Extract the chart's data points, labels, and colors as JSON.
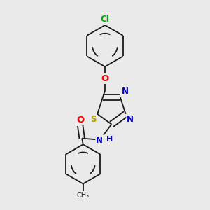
{
  "bg_color": "#eaeaea",
  "bond_color": "#1a1a1a",
  "atom_colors": {
    "Cl": "#00aa00",
    "O": "#ff0000",
    "N": "#0000cd",
    "S": "#b8a000",
    "H": "#0000cd"
  },
  "font_size": 8.5,
  "line_width": 1.3,
  "figsize": [
    3.0,
    3.0
  ],
  "dpi": 100,
  "xlim": [
    0.15,
    0.85
  ],
  "ylim": [
    0.02,
    0.98
  ]
}
